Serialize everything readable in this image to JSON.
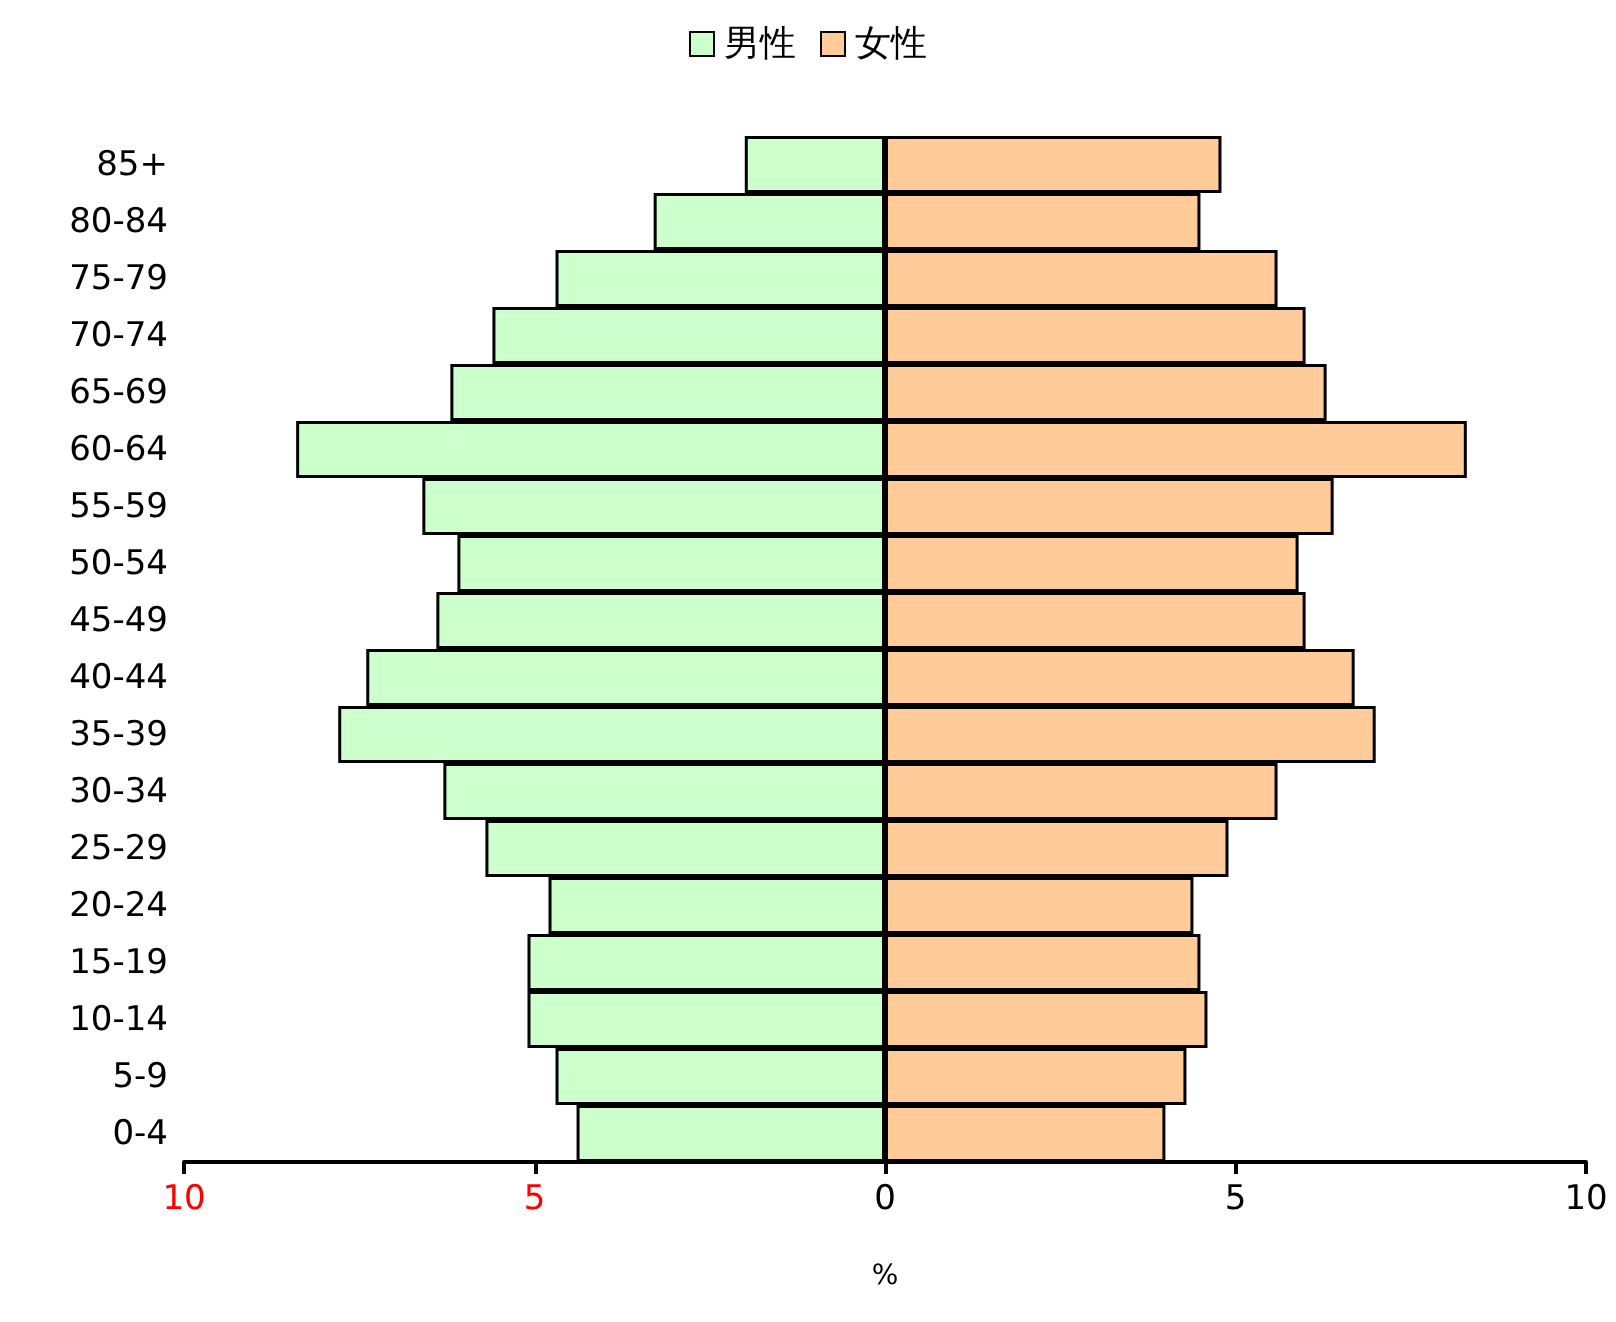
{
  "chart_data": {
    "type": "bar",
    "orientation": "horizontal",
    "xlabel": "%",
    "categories": [
      "85+",
      "80-84",
      "75-79",
      "70-74",
      "65-69",
      "60-64",
      "55-59",
      "50-54",
      "45-49",
      "40-44",
      "35-39",
      "30-34",
      "25-29",
      "20-24",
      "15-19",
      "10-14",
      "5-9",
      "0-4"
    ],
    "series": [
      {
        "name": "男性",
        "color": "#ccffcc",
        "values": [
          -2.0,
          -3.3,
          -4.7,
          -5.6,
          -6.2,
          -8.4,
          -6.6,
          -6.1,
          -6.4,
          -7.4,
          -7.8,
          -6.3,
          -5.7,
          -4.8,
          -5.1,
          -5.1,
          -4.7,
          -4.4
        ]
      },
      {
        "name": "女性",
        "color": "#ffcc99",
        "values": [
          4.8,
          4.5,
          5.6,
          6.0,
          6.3,
          8.3,
          6.4,
          5.9,
          6.0,
          6.7,
          7.0,
          5.6,
          4.9,
          4.4,
          4.5,
          4.6,
          4.3,
          4.0
        ]
      }
    ],
    "xlim": [
      -10,
      10
    ],
    "xticks": [
      {
        "value": -10,
        "label": "10"
      },
      {
        "value": -5,
        "label": "5"
      },
      0,
      5,
      10
    ],
    "stacked": true,
    "grid": false,
    "legend": "top"
  }
}
